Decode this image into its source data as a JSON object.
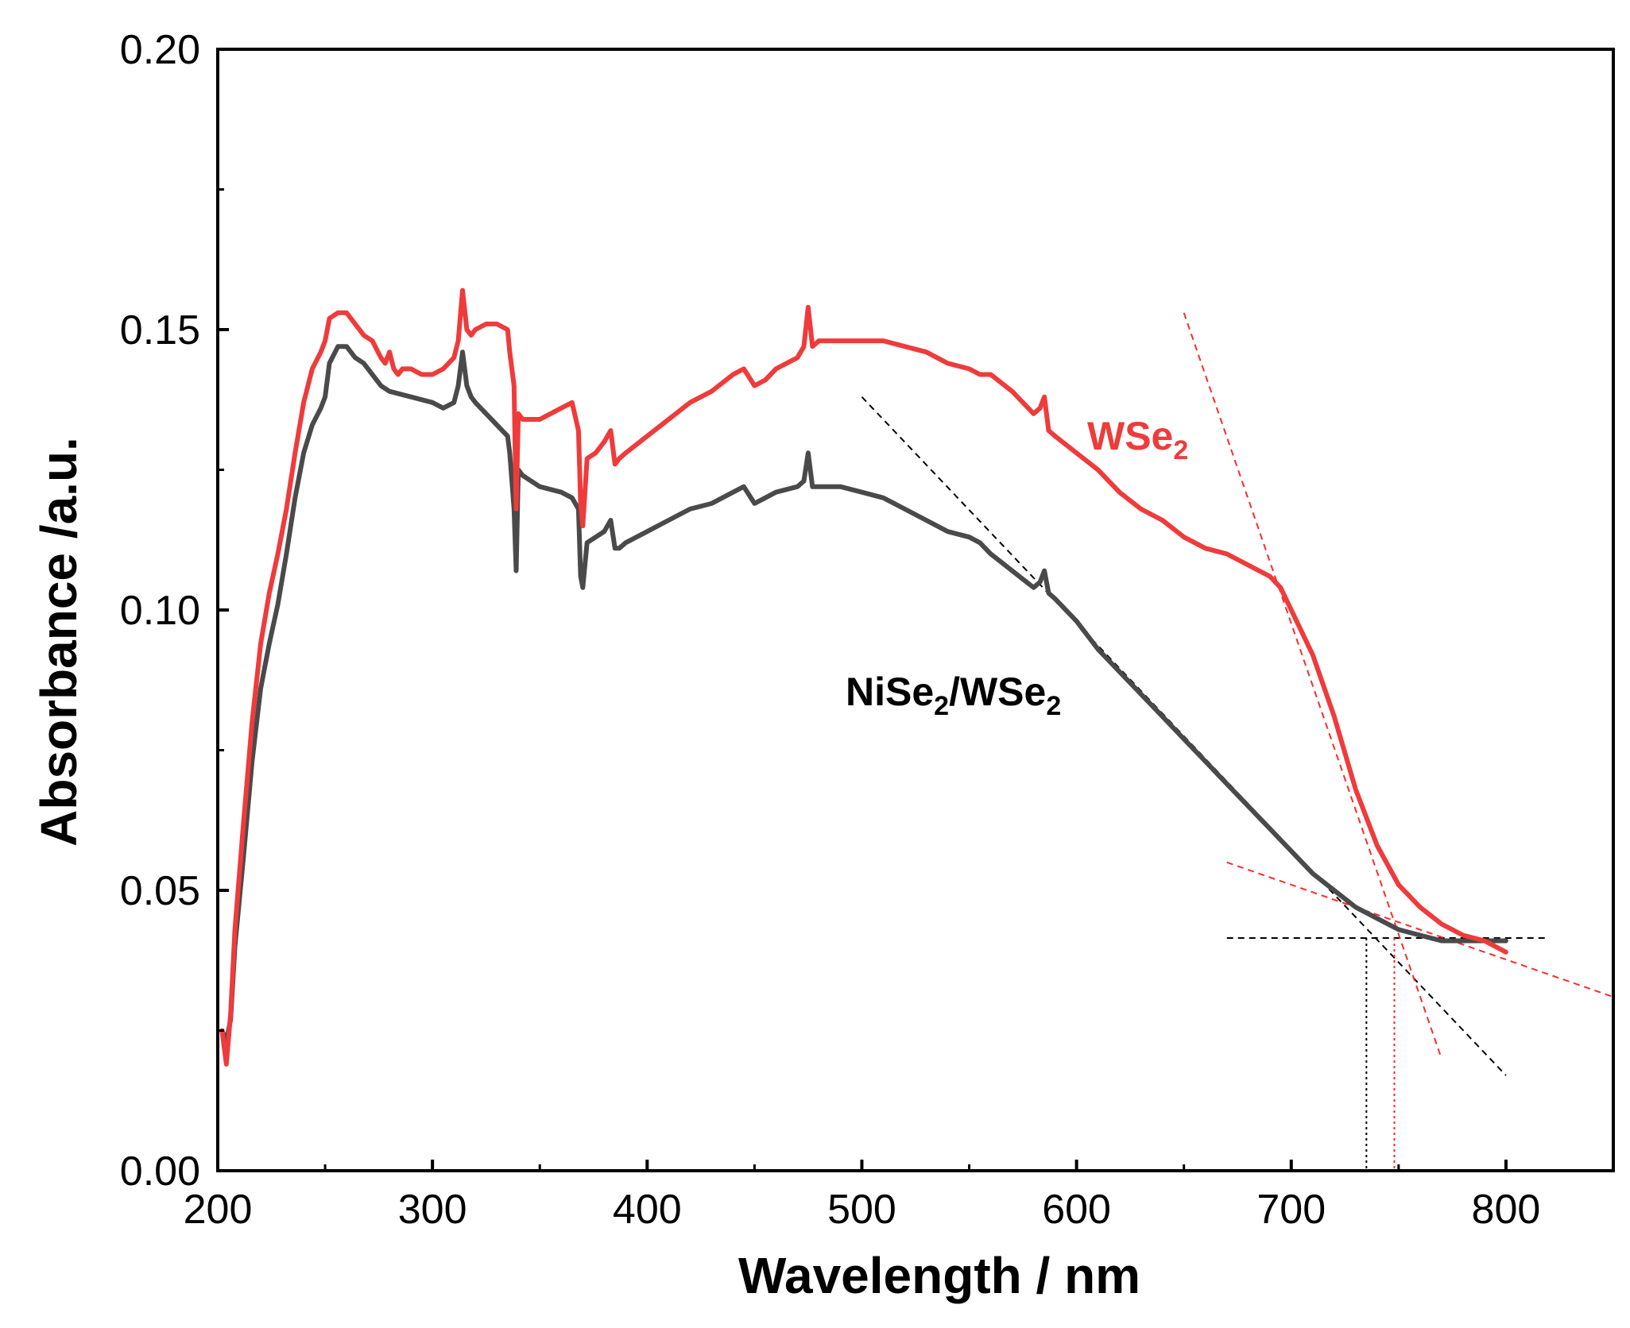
{
  "chart_data": {
    "type": "line",
    "title": "",
    "xlabel": "Wavelength / nm",
    "ylabel": "Absorbance /a.u.",
    "xlim": [
      200,
      850
    ],
    "ylim": [
      0.0,
      0.2
    ],
    "xticks": [
      200,
      300,
      400,
      500,
      600,
      700,
      800
    ],
    "xtick_labels": [
      "200",
      "300",
      "400",
      "500",
      "600",
      "700",
      "800"
    ],
    "yticks": [
      0.0,
      0.05,
      0.1,
      0.15,
      0.2
    ],
    "ytick_labels": [
      "0.00",
      "0.05",
      "0.10",
      "0.15",
      "0.20"
    ],
    "grid": false,
    "series": [
      {
        "name": "WSe2",
        "label_main": "WSe",
        "label_sub": "2",
        "color": "#ef3b3b",
        "x": [
          202,
          204,
          206,
          208,
          212,
          216,
          220,
          224,
          228,
          232,
          236,
          240,
          244,
          248,
          250,
          252,
          256,
          260,
          264,
          268,
          272,
          276,
          278,
          280,
          282,
          284,
          286,
          290,
          295,
          300,
          305,
          310,
          312,
          314,
          316,
          318,
          320,
          325,
          330,
          335,
          336,
          338,
          339,
          340,
          342,
          350,
          360,
          365,
          368,
          369,
          370,
          372,
          376,
          380,
          383,
          385,
          387,
          390,
          400,
          410,
          420,
          430,
          440,
          445,
          450,
          455,
          460,
          470,
          473,
          475,
          477,
          480,
          490,
          500,
          510,
          520,
          530,
          540,
          550,
          555,
          560,
          570,
          580,
          583,
          585,
          587,
          590,
          600,
          610,
          620,
          630,
          640,
          650,
          660,
          670,
          680,
          690,
          695,
          700,
          710,
          720,
          730,
          740,
          750,
          760,
          770,
          780,
          790,
          800
        ],
        "y": [
          0.025,
          0.019,
          0.028,
          0.043,
          0.062,
          0.08,
          0.094,
          0.103,
          0.11,
          0.118,
          0.128,
          0.137,
          0.143,
          0.146,
          0.148,
          0.152,
          0.153,
          0.153,
          0.151,
          0.149,
          0.148,
          0.145,
          0.144,
          0.146,
          0.143,
          0.142,
          0.143,
          0.143,
          0.142,
          0.142,
          0.143,
          0.145,
          0.148,
          0.157,
          0.15,
          0.149,
          0.15,
          0.151,
          0.151,
          0.15,
          0.146,
          0.14,
          0.118,
          0.135,
          0.134,
          0.134,
          0.136,
          0.137,
          0.132,
          0.119,
          0.115,
          0.127,
          0.128,
          0.13,
          0.132,
          0.126,
          0.127,
          0.128,
          0.131,
          0.134,
          0.137,
          0.139,
          0.142,
          0.143,
          0.14,
          0.141,
          0.143,
          0.145,
          0.147,
          0.154,
          0.147,
          0.148,
          0.148,
          0.148,
          0.148,
          0.147,
          0.146,
          0.144,
          0.143,
          0.142,
          0.142,
          0.139,
          0.135,
          0.136,
          0.138,
          0.132,
          0.131,
          0.128,
          0.125,
          0.121,
          0.118,
          0.116,
          0.113,
          0.111,
          0.11,
          0.108,
          0.106,
          0.104,
          0.1,
          0.092,
          0.081,
          0.068,
          0.058,
          0.051,
          0.047,
          0.044,
          0.042,
          0.041,
          0.039
        ]
      },
      {
        "name": "NiSe2/WSe2",
        "label_main": "NiSe",
        "label_sub": "2",
        "label_main2": "/WSe",
        "label_sub2": "2",
        "color": "#4a4a4a",
        "x": [
          202,
          204,
          206,
          208,
          212,
          216,
          220,
          224,
          228,
          232,
          236,
          240,
          244,
          248,
          250,
          252,
          256,
          260,
          264,
          268,
          272,
          276,
          280,
          290,
          300,
          305,
          310,
          312,
          314,
          316,
          318,
          320,
          325,
          330,
          335,
          336,
          338,
          339,
          340,
          342,
          350,
          360,
          365,
          368,
          369,
          370,
          372,
          376,
          380,
          383,
          385,
          387,
          390,
          400,
          410,
          420,
          430,
          440,
          445,
          450,
          455,
          460,
          470,
          473,
          475,
          477,
          480,
          490,
          500,
          510,
          520,
          530,
          540,
          550,
          555,
          560,
          570,
          580,
          583,
          585,
          587,
          590,
          600,
          610,
          620,
          630,
          640,
          650,
          660,
          670,
          680,
          690,
          700,
          710,
          720,
          730,
          740,
          750,
          760,
          770,
          780,
          790,
          800
        ],
        "y": [
          0.025,
          0.023,
          0.027,
          0.04,
          0.056,
          0.073,
          0.086,
          0.094,
          0.101,
          0.11,
          0.12,
          0.128,
          0.133,
          0.136,
          0.138,
          0.144,
          0.147,
          0.147,
          0.145,
          0.144,
          0.142,
          0.14,
          0.139,
          0.138,
          0.137,
          0.136,
          0.137,
          0.14,
          0.146,
          0.14,
          0.138,
          0.137,
          0.135,
          0.133,
          0.131,
          0.128,
          0.118,
          0.107,
          0.125,
          0.124,
          0.122,
          0.121,
          0.12,
          0.118,
          0.106,
          0.104,
          0.112,
          0.113,
          0.114,
          0.116,
          0.111,
          0.111,
          0.112,
          0.114,
          0.116,
          0.118,
          0.119,
          0.121,
          0.122,
          0.119,
          0.12,
          0.121,
          0.122,
          0.123,
          0.128,
          0.122,
          0.122,
          0.122,
          0.121,
          0.12,
          0.118,
          0.116,
          0.114,
          0.113,
          0.112,
          0.11,
          0.107,
          0.104,
          0.105,
          0.107,
          0.103,
          0.102,
          0.098,
          0.093,
          0.089,
          0.085,
          0.081,
          0.077,
          0.073,
          0.069,
          0.065,
          0.061,
          0.057,
          0.053,
          0.05,
          0.047,
          0.045,
          0.043,
          0.042,
          0.041,
          0.041,
          0.041,
          0.041
        ]
      }
    ],
    "fit_lines": [
      {
        "name": "black-slope-fit",
        "color": "#000000",
        "x": [
          500,
          800
        ],
        "y": [
          0.138,
          0.017
        ]
      },
      {
        "name": "black-baseline-fit",
        "color": "#000000",
        "x": [
          670,
          820
        ],
        "y": [
          0.0415,
          0.0415
        ]
      },
      {
        "name": "red-slope-fit",
        "color": "#ff2a2a",
        "x": [
          650,
          770
        ],
        "y": [
          0.153,
          0.02
        ]
      },
      {
        "name": "red-baseline-fit",
        "color": "#ff2a2a",
        "x": [
          670,
          850
        ],
        "y": [
          0.055,
          0.031
        ]
      }
    ],
    "drop_lines": [
      {
        "name": "black-bandgap-dropline",
        "color": "#000000",
        "x": 735,
        "y_top": 0.0415
      },
      {
        "name": "red-bandgap-dropline",
        "color": "#ff2a2a",
        "x": 748,
        "y_top": 0.0415
      }
    ]
  }
}
